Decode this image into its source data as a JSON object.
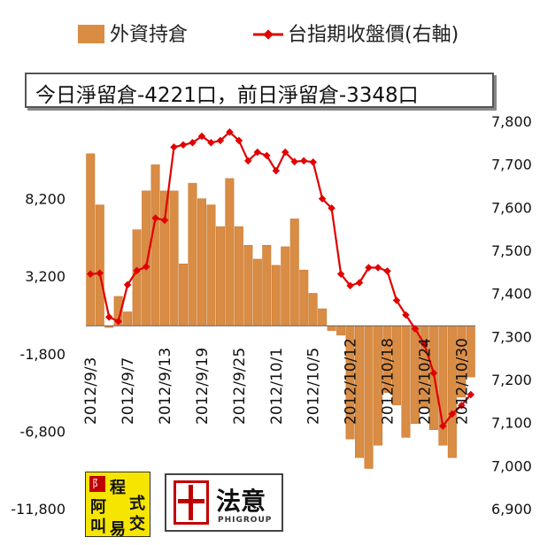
{
  "chart_data": {
    "type": "bar+line",
    "legend": {
      "bar_label": "外資持倉",
      "line_label": "台指期收盤價(右軸)"
    },
    "annotation": "今日淨留倉-4221口，前日淨留倉-3348口",
    "left_axis": {
      "ylim": [
        -11800,
        13200
      ],
      "tick_values": [
        8200,
        3200,
        -1800,
        -6800,
        -11800
      ],
      "tick_labels": [
        "8,200",
        "3,200",
        "-1,800",
        "-6,800",
        "-11,800"
      ]
    },
    "right_axis": {
      "ylim": [
        6900,
        7800
      ],
      "tick_values": [
        7800,
        7700,
        7600,
        7500,
        7400,
        7300,
        7200,
        7100,
        7000,
        6900
      ],
      "tick_labels": [
        "7,800",
        "7,700",
        "7,600",
        "7,500",
        "7,400",
        "7,300",
        "7,200",
        "7,100",
        "7,000",
        "6,900"
      ]
    },
    "x_tick_labels": [
      {
        "index": 0,
        "label": "2012/9/3"
      },
      {
        "index": 4,
        "label": "2012/9/7"
      },
      {
        "index": 8,
        "label": "2012/9/13"
      },
      {
        "index": 12,
        "label": "2012/9/19"
      },
      {
        "index": 16,
        "label": "2012/9/25"
      },
      {
        "index": 20,
        "label": "2012/10/1"
      },
      {
        "index": 24,
        "label": "2012/10/5"
      },
      {
        "index": 28,
        "label": "2012/10/12"
      },
      {
        "index": 32,
        "label": "2012/10/18"
      },
      {
        "index": 36,
        "label": "2012/10/24"
      },
      {
        "index": 40,
        "label": "2012/10/30"
      }
    ],
    "bar_values": [
      11100,
      7800,
      -100,
      1900,
      900,
      6200,
      8700,
      10400,
      8700,
      8700,
      4000,
      9200,
      8200,
      7800,
      6400,
      9500,
      6400,
      5200,
      4300,
      5200,
      3900,
      5100,
      6900,
      3600,
      2100,
      1100,
      -300,
      -600,
      -7300,
      -8500,
      -9200,
      -7700,
      -4300,
      -5100,
      -7200,
      -6300,
      -5300,
      -6700,
      -7700,
      -8500,
      -4600,
      -3300
    ],
    "line_values": [
      7445,
      7447,
      7345,
      7335,
      7420,
      7453,
      7462,
      7575,
      7570,
      7740,
      7745,
      7750,
      7765,
      7750,
      7755,
      7775,
      7755,
      7708,
      7728,
      7720,
      7685,
      7728,
      7706,
      7708,
      7705,
      7620,
      7598,
      7445,
      7418,
      7425,
      7460,
      7460,
      7452,
      7384,
      7350,
      7318,
      7282,
      7215,
      7092,
      7120,
      7140,
      7165
    ],
    "colors": {
      "bar": "#d98c44",
      "bar_edge": "#c8732a",
      "line": "#e00000"
    }
  },
  "logos": {
    "logo1_mark": "阝",
    "logo1_chars": [
      "程",
      "式",
      "阿",
      "交",
      "叫",
      "易"
    ],
    "logo2_name": "法意",
    "logo2_sub": "PHIGROUP"
  }
}
